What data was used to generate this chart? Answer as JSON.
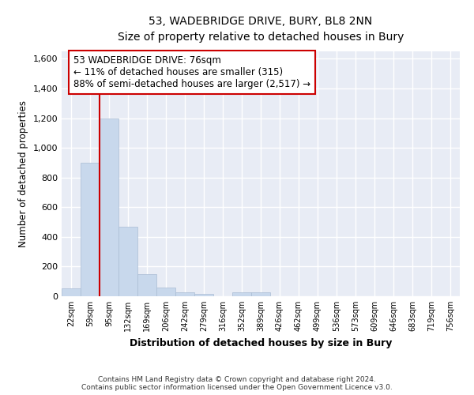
{
  "title": "53, WADEBRIDGE DRIVE, BURY, BL8 2NN",
  "subtitle": "Size of property relative to detached houses in Bury",
  "xlabel": "Distribution of detached houses by size in Bury",
  "ylabel": "Number of detached properties",
  "bar_color": "#c8d8ec",
  "bar_edge_color": "#aabdd4",
  "plot_bg_color": "#e8ecf5",
  "fig_bg_color": "#ffffff",
  "annotation_line_color": "#cc0000",
  "categories": [
    "22sqm",
    "59sqm",
    "95sqm",
    "132sqm",
    "169sqm",
    "206sqm",
    "242sqm",
    "279sqm",
    "316sqm",
    "352sqm",
    "389sqm",
    "426sqm",
    "462sqm",
    "499sqm",
    "536sqm",
    "573sqm",
    "609sqm",
    "646sqm",
    "683sqm",
    "719sqm",
    "756sqm"
  ],
  "values": [
    55,
    900,
    1195,
    470,
    150,
    60,
    25,
    15,
    0,
    25,
    25,
    0,
    0,
    0,
    0,
    0,
    0,
    0,
    0,
    0,
    0
  ],
  "ylim": [
    0,
    1650
  ],
  "yticks": [
    0,
    200,
    400,
    600,
    800,
    1000,
    1200,
    1400,
    1600
  ],
  "red_line_x": 1.5,
  "annotation_text_line1": "53 WADEBRIDGE DRIVE: 76sqm",
  "annotation_text_line2": "← 11% of detached houses are smaller (315)",
  "annotation_text_line3": "88% of semi-detached houses are larger (2,517) →",
  "footer_line1": "Contains HM Land Registry data © Crown copyright and database right 2024.",
  "footer_line2": "Contains public sector information licensed under the Open Government Licence v3.0."
}
